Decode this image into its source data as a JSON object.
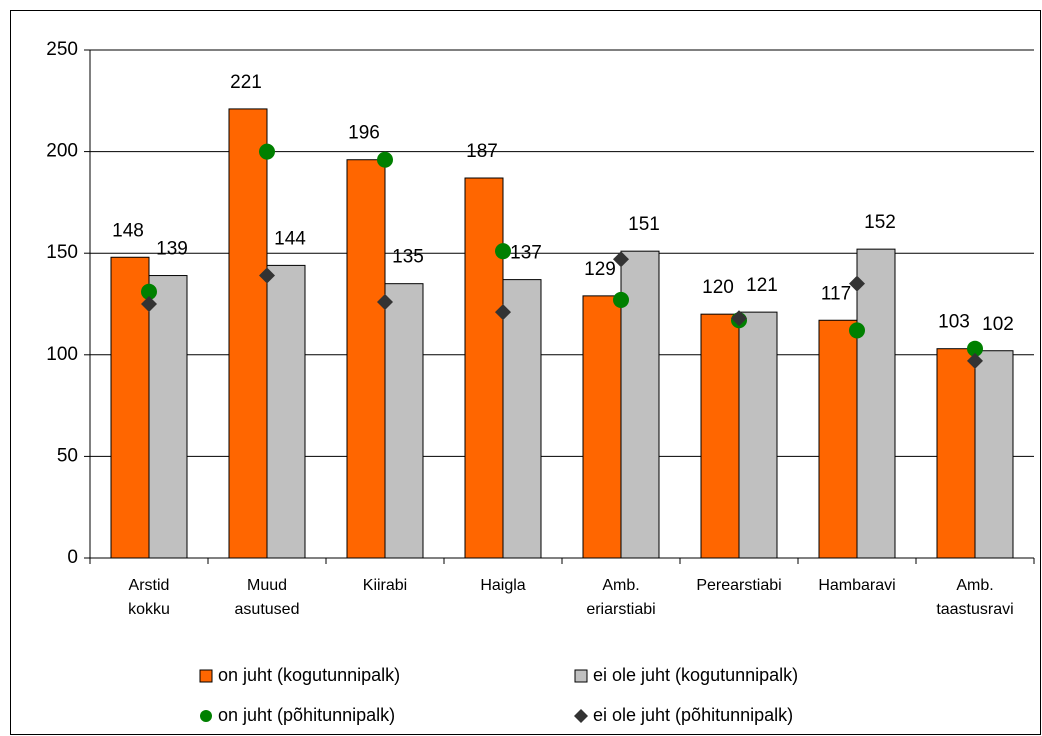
{
  "chart_data": {
    "type": "bar",
    "categories": [
      "Arstid kokku",
      "Muud asutused",
      "Kiirabi",
      "Haigla",
      "Amb. eriarstiabi",
      "Perearstiabi",
      "Hambaravi",
      "Amb. taastusravi"
    ],
    "series": [
      {
        "name": "on juht (kogutunnipalk)",
        "color": "#ff6600",
        "kind": "bar",
        "values": [
          148,
          221,
          196,
          187,
          129,
          120,
          117,
          103
        ]
      },
      {
        "name": "ei ole juht (kogutunnipalk)",
        "color": "#c0c0c0",
        "kind": "bar",
        "values": [
          139,
          144,
          135,
          137,
          151,
          121,
          152,
          102
        ]
      },
      {
        "name": "on juht (põhitunnipalk)",
        "color": "#008000",
        "kind": "circle",
        "values": [
          131,
          200,
          196,
          151,
          127,
          117,
          112,
          103
        ]
      },
      {
        "name": "ei ole juht (põhitunnipalk)",
        "color": "#333333",
        "kind": "diamond",
        "values": [
          125,
          139,
          126,
          121,
          147,
          118,
          135,
          97
        ]
      }
    ],
    "ylim": [
      0,
      250
    ],
    "yticks": [
      0,
      50,
      100,
      150,
      200,
      250
    ],
    "grid": true
  }
}
